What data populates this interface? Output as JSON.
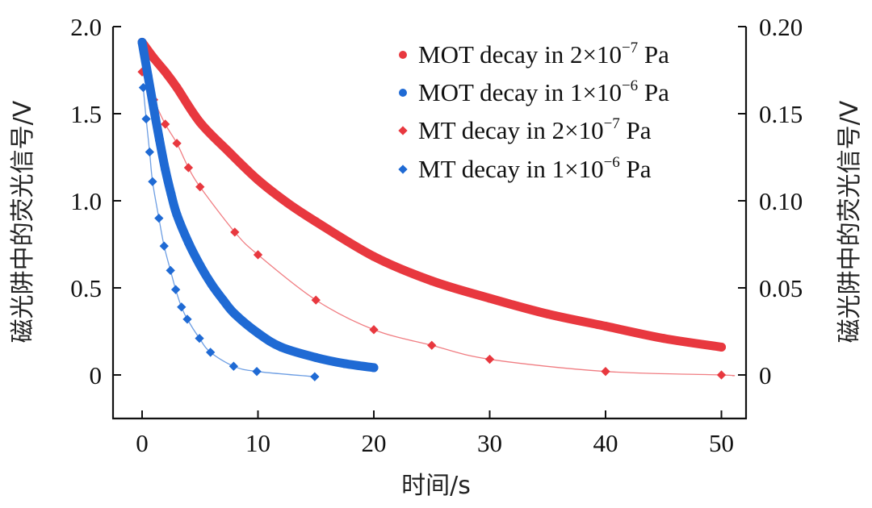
{
  "chart_data": {
    "type": "scatter",
    "title": "",
    "xlabel": "时间/s",
    "ylabel_left": "磁光阱中的荧光信号/V",
    "ylabel_right": "磁光阱中的荧光信号/V",
    "xlim": [
      -2.5,
      52.3
    ],
    "ylim_left": [
      -0.25,
      2.0
    ],
    "ylim_right": [
      -0.025,
      0.2
    ],
    "x_ticks": [
      0,
      10,
      20,
      30,
      40,
      50
    ],
    "x_tick_labels": [
      "0",
      "10",
      "20",
      "30",
      "40",
      "50"
    ],
    "y_left_ticks": [
      0,
      0.5,
      1.0,
      1.5,
      2.0
    ],
    "y_left_tick_labels": [
      "0",
      "0.5",
      "1.0",
      "1.5",
      "2.0"
    ],
    "y_right_ticks": [
      0,
      0.05,
      0.1,
      0.15,
      0.2
    ],
    "y_right_tick_labels": [
      "0",
      "0.05",
      "0.10",
      "0.15",
      "0.20"
    ],
    "grid": false,
    "legend_position": "top-right",
    "colors": {
      "red": "#E8383F",
      "blue": "#1F6AD4"
    },
    "series": [
      {
        "name": "MOT decay in 2×10⁻⁷ Pa",
        "legend_main": "MOT decay in 2×10",
        "legend_exp": "−7",
        "legend_unit": " Pa",
        "axis": "left",
        "marker": "dense-circle",
        "color": "red",
        "x": [
          0,
          1,
          2,
          3,
          5,
          7.5,
          10,
          12.5,
          15,
          20,
          25,
          30,
          35,
          40,
          45,
          50
        ],
        "y": [
          1.91,
          1.82,
          1.74,
          1.65,
          1.45,
          1.28,
          1.12,
          0.99,
          0.88,
          0.68,
          0.54,
          0.44,
          0.35,
          0.28,
          0.21,
          0.16
        ]
      },
      {
        "name": "MOT decay in 1×10⁻⁶ Pa",
        "legend_main": "MOT decay in 1×10",
        "legend_exp": "−6",
        "legend_unit": " Pa",
        "axis": "left",
        "marker": "dense-circle",
        "color": "blue",
        "x": [
          0,
          0.5,
          1,
          1.5,
          2,
          2.5,
          3,
          4,
          5,
          6,
          7,
          8,
          10,
          12,
          15,
          17.5,
          20
        ],
        "y": [
          1.91,
          1.72,
          1.53,
          1.35,
          1.18,
          1.04,
          0.92,
          0.76,
          0.63,
          0.52,
          0.43,
          0.35,
          0.24,
          0.16,
          0.1,
          0.065,
          0.042
        ]
      },
      {
        "name": "MT decay in 2×10⁻⁷ Pa",
        "legend_main": "MT decay in 2×10",
        "legend_exp": "−7",
        "legend_unit": " Pa",
        "axis": "right",
        "marker": "diamond",
        "color": "red",
        "x": [
          0,
          1,
          2,
          3,
          4,
          5,
          8,
          10,
          15,
          20,
          25,
          30,
          40,
          50
        ],
        "y": [
          0.174,
          0.158,
          0.144,
          0.133,
          0.119,
          0.108,
          0.082,
          0.069,
          0.043,
          0.026,
          0.017,
          0.009,
          0.002,
          0.0
        ]
      },
      {
        "name": "MT decay in 1×10⁻⁶ Pa",
        "legend_main": "MT decay in 1×10",
        "legend_exp": "−6",
        "legend_unit": " Pa",
        "axis": "right",
        "marker": "diamond",
        "color": "blue",
        "x": [
          0.1,
          0.35,
          0.65,
          0.9,
          1.45,
          1.9,
          2.45,
          2.9,
          3.4,
          3.9,
          4.95,
          5.9,
          7.9,
          9.9,
          14.9
        ],
        "y": [
          0.165,
          0.147,
          0.128,
          0.111,
          0.09,
          0.074,
          0.06,
          0.049,
          0.039,
          0.032,
          0.021,
          0.013,
          0.005,
          0.002,
          -0.001
        ]
      }
    ]
  }
}
